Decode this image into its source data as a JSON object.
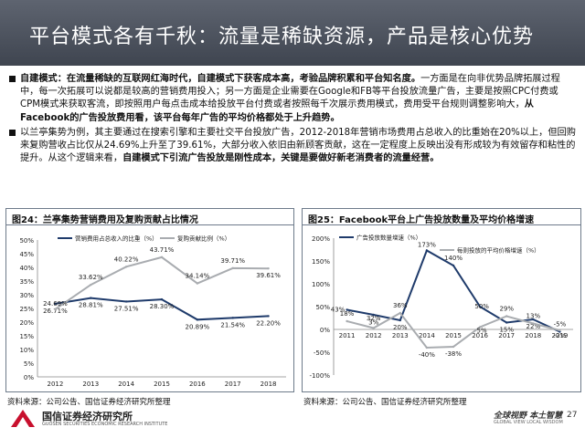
{
  "header": {
    "title": "平台模式各有千秋：流量是稀缺资源，产品是核心优势"
  },
  "paragraphs": [
    {
      "lead": "自建模式：在流量稀缺的互联网红海时代，自建模式下获客成本高，考验品牌积累和平台知名度。",
      "body": "一方面是在向非优势品牌拓展过程中，每一次拓展可以说都是较高的营销费用投入；另一方面是企业需要在Google和FB等平台投放流量广告，主要是按照CPC付费或CPM模式来获取客流，即按照用户每点击成本给投放平台付费或者按照每千次展示费用模式，费用受平台规则调整影响大，",
      "tail": "从Facebook的广告投放费用看，该平台每年广告的平均价格都处于上升趋势。"
    },
    {
      "lead": "",
      "body": "以兰亭集势为例，其主要通过在搜索引擎和主要社交平台投放广告，2012-2018年营销市场费用占总收入的比重始在20%以上，但回购来复购营收占比仅从24.69%上升至了39.61%，大部分收入依旧由新顾客贡献，这在一定程度上反映出没有形成较为有效留存和粘性的提升。从这个逻辑来看，",
      "tail": "自建模式下引流广告投放是刚性成本，关键是要做好新老消费者的流量经营。"
    }
  ],
  "chart24": {
    "heading": "图24：兰亭集势营销费用及复购贡献占比情况",
    "source": "资料来源：公司公告、国信证券经济研究所整理",
    "legend": [
      "营销费用占总收入的比重（%）",
      "复购贡献比例（%）"
    ],
    "yticks": [
      "50%",
      "45%",
      "40%",
      "35%",
      "30%",
      "25%",
      "20%",
      "15%",
      "10%",
      "5%",
      "0%"
    ],
    "xticks": [
      "2012",
      "2013",
      "2014",
      "2015",
      "2016",
      "2017",
      "2018"
    ],
    "labels_s1": [
      "26.71%",
      "28.81%",
      "27.51%",
      "28.30%",
      "20.89%",
      "21.54%",
      "22.20%"
    ],
    "labels_s2": [
      "24.69%",
      "33.62%",
      "40.22%",
      "43.71%",
      "34.14%",
      "39.71%",
      "39.61%"
    ]
  },
  "chart25": {
    "heading": "图25：Facebook平台上广告投放数量及平均价格增速",
    "source": "资料来源：公司公告、国信证券经济研究所整理",
    "legend": [
      "广告投放数量增速（%）",
      "每则投放的平均价格增速（%）"
    ],
    "yticks": [
      "200%",
      "150%",
      "100%",
      "50%",
      "0%",
      "-50%",
      "-100%"
    ],
    "xticks": [
      "2011",
      "2012",
      "2013",
      "2014",
      "2015",
      "2016",
      "2017",
      "2018",
      "2019"
    ],
    "labels_s1": [
      "43%",
      "32%",
      "20%",
      "173%",
      "140%",
      "50%",
      "15%",
      "22%",
      "-5%"
    ],
    "labels_s2": [
      "18%",
      "3%",
      "36%",
      "-40%",
      "-38%",
      "5%",
      "29%",
      "13%",
      "-2%"
    ]
  },
  "chart_data": [
    {
      "type": "line",
      "title": "兰亭集势营销费用及复购贡献占比情况",
      "categories": [
        "2012",
        "2013",
        "2014",
        "2015",
        "2016",
        "2017",
        "2018"
      ],
      "ylim": [
        0,
        50
      ],
      "series": [
        {
          "name": "营销费用占总收入的比重（%）",
          "values": [
            26.71,
            28.81,
            27.51,
            28.3,
            20.89,
            21.54,
            22.2
          ],
          "color": "#1f3b6b"
        },
        {
          "name": "复购贡献比例（%）",
          "values": [
            24.69,
            33.62,
            40.22,
            43.71,
            34.14,
            39.71,
            39.61
          ],
          "color": "#a9acb0"
        }
      ]
    },
    {
      "type": "line",
      "title": "Facebook平台上广告投放数量及平均价格增速",
      "categories": [
        "2011",
        "2012",
        "2013",
        "2014",
        "2015",
        "2016",
        "2017",
        "2018",
        "2019"
      ],
      "ylim": [
        -100,
        200
      ],
      "series": [
        {
          "name": "广告投放数量增速（%）",
          "values": [
            43,
            32,
            20,
            173,
            140,
            50,
            15,
            22,
            -5
          ],
          "color": "#1f3b6b"
        },
        {
          "name": "每则投放的平均价格增速（%）",
          "values": [
            18,
            3,
            36,
            -40,
            -38,
            5,
            29,
            13,
            -2
          ],
          "color": "#a9acb0"
        }
      ]
    }
  ],
  "footer": {
    "org": "国信证券经济研究所",
    "org_en": "GUOSEN SECURITIES ECONOMIC RESEARCH INSTITUTE",
    "slogan": "全球视野 本土智慧",
    "slogan_en": "GLOBAL VIEW   LOCAL WISDOM",
    "page": "27"
  }
}
